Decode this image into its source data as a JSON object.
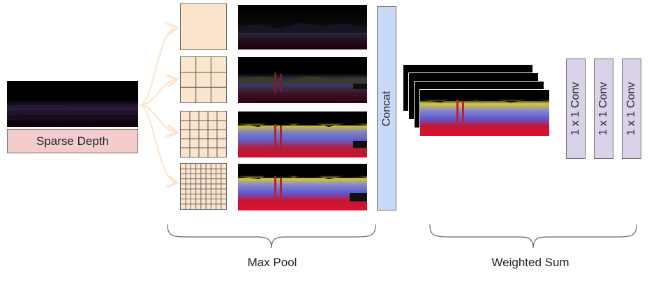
{
  "input": {
    "label": "Sparse Depth"
  },
  "concat": {
    "label": "Concat"
  },
  "convs": [
    {
      "label": "1 x 1 Conv"
    },
    {
      "label": "1 x 1 Conv"
    },
    {
      "label": "1 x 1 Conv"
    }
  ],
  "captions": {
    "max_pool": "Max Pool",
    "weighted_sum": "Weighted Sum"
  },
  "colors": {
    "input_box": "#f4cccc",
    "grid_box": "#fce5cd",
    "concat_box": "#c9daf8",
    "conv_box": "#d9d2e9",
    "arrow": "#fce5cd",
    "brace": "#666666"
  },
  "pool_grids": [
    {
      "divisions": 1
    },
    {
      "divisions": 3
    },
    {
      "divisions": 5
    },
    {
      "divisions": 9
    }
  ]
}
